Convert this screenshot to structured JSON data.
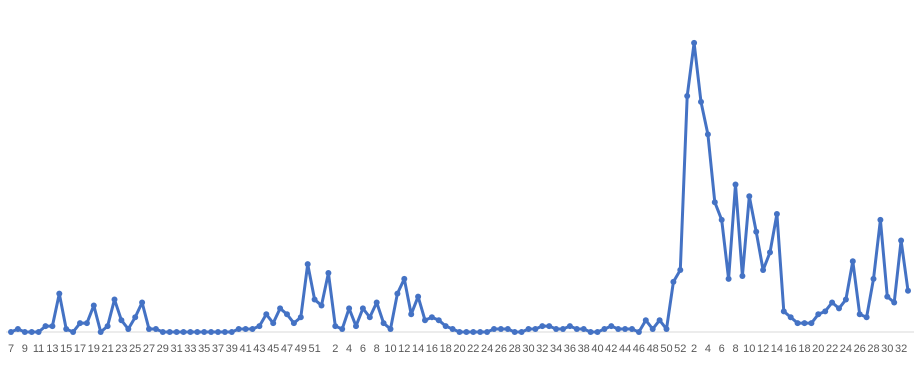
{
  "chart_data": {
    "type": "line",
    "categories": [
      "7",
      null,
      "9",
      null,
      "11",
      null,
      "13",
      null,
      "15",
      null,
      "17",
      null,
      "19",
      null,
      "21",
      null,
      "23",
      null,
      "25",
      null,
      "27",
      null,
      "29",
      null,
      "31",
      null,
      "33",
      null,
      "35",
      null,
      "37",
      null,
      "39",
      null,
      "41",
      null,
      "43",
      null,
      "45",
      null,
      "47",
      null,
      "49",
      null,
      "51",
      null,
      null,
      "2",
      null,
      "4",
      null,
      "6",
      null,
      "8",
      null,
      "10",
      null,
      "12",
      null,
      "14",
      null,
      "16",
      null,
      "18",
      null,
      "20",
      null,
      "22",
      null,
      "24",
      null,
      "26",
      null,
      "28",
      null,
      "30",
      null,
      "32",
      null,
      "34",
      null,
      "36",
      null,
      "38",
      null,
      "40",
      null,
      "42",
      null,
      "44",
      null,
      "46",
      null,
      "48",
      null,
      "50",
      null,
      "52",
      null,
      "2",
      null,
      "4",
      null,
      "6",
      null,
      "8",
      null,
      "10",
      null,
      "12",
      null,
      "14",
      null,
      "16",
      null,
      "18",
      null,
      "20",
      null,
      "22",
      null,
      "24",
      null,
      "26",
      null,
      "28",
      null,
      "30",
      null,
      "32",
      null
    ],
    "series": [
      {
        "color": "#4472c4",
        "values": [
          0,
          1,
          0,
          0,
          0,
          2,
          2,
          13,
          1,
          0,
          3,
          3,
          9,
          0,
          2,
          11,
          4,
          1,
          5,
          10,
          1,
          1,
          0,
          0,
          0,
          0,
          0,
          0,
          0,
          0,
          0,
          0,
          0,
          1,
          1,
          1,
          2,
          6,
          3,
          8,
          6,
          3,
          5,
          23,
          11,
          9,
          20,
          2,
          1,
          8,
          2,
          8,
          5,
          10,
          3,
          1,
          13,
          18,
          6,
          12,
          4,
          5,
          4,
          2,
          1,
          0,
          0,
          0,
          0,
          0,
          1,
          1,
          1,
          0,
          0,
          1,
          1,
          2,
          2,
          1,
          1,
          2,
          1,
          1,
          0,
          0,
          1,
          2,
          1,
          1,
          1,
          0,
          4,
          1,
          4,
          1,
          17,
          21,
          80,
          98,
          78,
          67,
          44,
          38,
          18,
          50,
          19,
          46,
          34,
          21,
          27,
          40,
          7,
          5,
          3,
          3,
          3,
          6,
          7,
          10,
          8,
          11,
          24,
          6,
          5,
          18,
          38,
          12,
          10,
          31,
          14
        ]
      }
    ],
    "ylim": [
      0,
      100
    ]
  }
}
